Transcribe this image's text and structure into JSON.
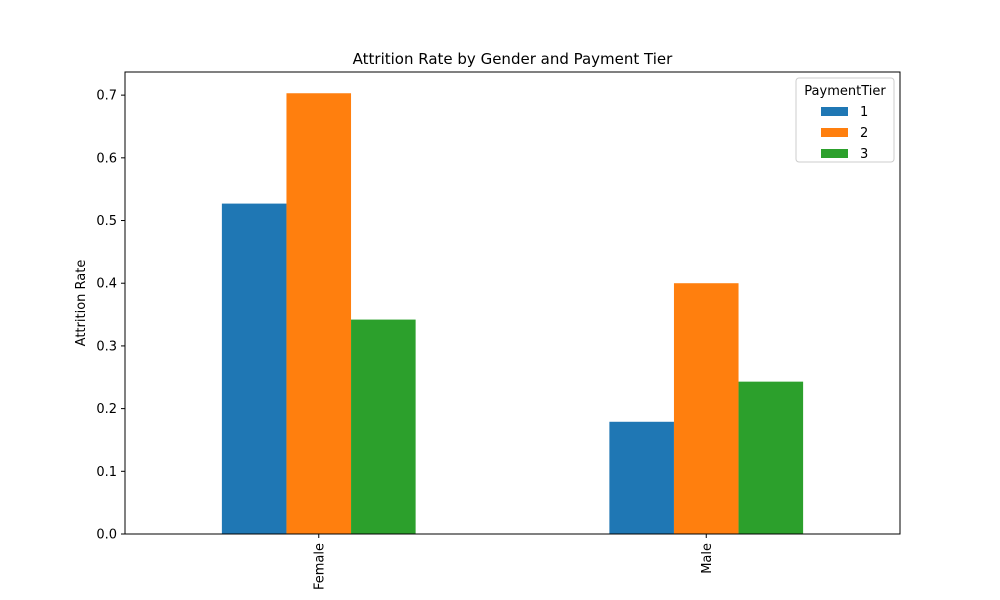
{
  "chart_data": {
    "type": "bar",
    "title": "Attrition Rate by Gender and Payment Tier",
    "xlabel": "",
    "ylabel": "Attrition Rate",
    "categories": [
      "Female",
      "Male"
    ],
    "series": [
      {
        "name": "1",
        "values": [
          0.527,
          0.179
        ],
        "color": "#1f77b4"
      },
      {
        "name": "2",
        "values": [
          0.703,
          0.4
        ],
        "color": "#ff7f0e"
      },
      {
        "name": "3",
        "values": [
          0.342,
          0.243
        ],
        "color": "#2ca02c"
      }
    ],
    "ylim": [
      0,
      0.7369
    ],
    "yticks": [
      "0.0",
      "0.1",
      "0.2",
      "0.3",
      "0.4",
      "0.5",
      "0.6",
      "0.7"
    ],
    "legend": {
      "title": "PaymentTier",
      "placement": "top-right"
    },
    "grid": false
  }
}
